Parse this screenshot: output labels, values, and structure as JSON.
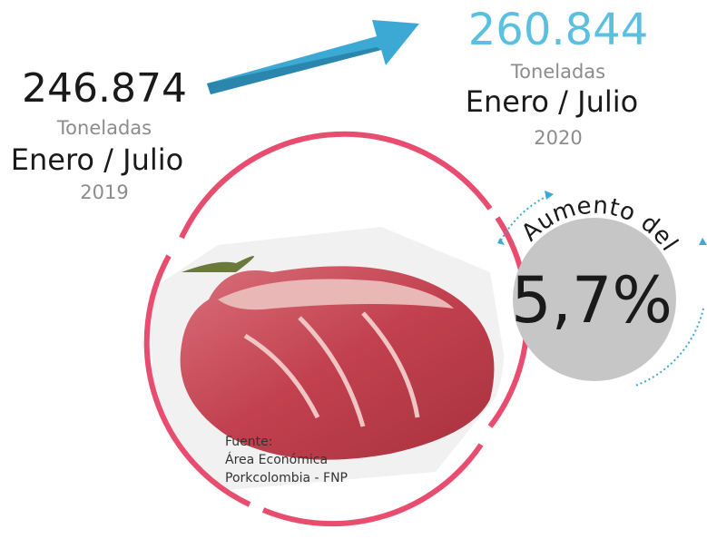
{
  "left": {
    "value": "246.874",
    "unit": "Toneladas",
    "period": "Enero / Julio",
    "year": "2019"
  },
  "right": {
    "value": "260.844",
    "unit": "Toneladas",
    "period": "Enero / Julio",
    "year": "2020"
  },
  "increase": {
    "label": "Aumento del",
    "value": "5,7%"
  },
  "source": [
    "Fuente:",
    "Área Económica",
    "Porkcolombia - FNP"
  ]
}
